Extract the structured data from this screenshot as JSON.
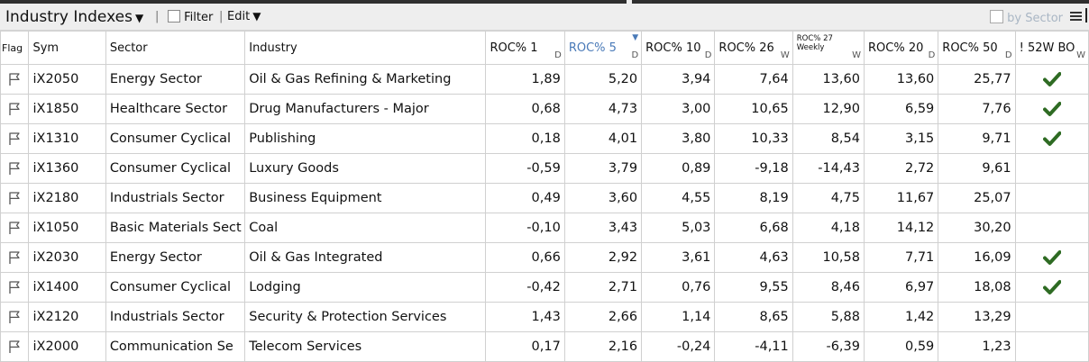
{
  "toolbar": {
    "title": "Industry Indexes",
    "separator": "|",
    "filter_label": "Filter",
    "edit_label": "Edit",
    "by_sector_label": "by Sector"
  },
  "columns": [
    {
      "label": "Flag",
      "unit": ""
    },
    {
      "label": "Sym",
      "unit": ""
    },
    {
      "label": "Sector",
      "unit": ""
    },
    {
      "label": "Industry",
      "unit": ""
    },
    {
      "label": "ROC% 1",
      "unit": "D"
    },
    {
      "label": "ROC% 5",
      "unit": "D"
    },
    {
      "label": "ROC% 10",
      "unit": "D"
    },
    {
      "label": "ROC% 26",
      "unit": "W"
    },
    {
      "label": "ROC% 27",
      "sublabel": "Weekly",
      "unit": "W"
    },
    {
      "label": "ROC% 20",
      "unit": "D"
    },
    {
      "label": "ROC% 50",
      "unit": "D"
    },
    {
      "label": "! 52W BO",
      "unit": "W"
    }
  ],
  "rows": [
    {
      "sym": "iX2050",
      "sector": "Energy Sector",
      "industry": "Oil & Gas Refining & Marketing",
      "roc1": "1,89",
      "roc5": "5,20",
      "roc10": "3,94",
      "roc26": "7,64",
      "roc27": "13,60",
      "roc20": "13,60",
      "roc50": "25,77",
      "bo": true
    },
    {
      "sym": "iX1850",
      "sector": "Healthcare Sector",
      "industry": "Drug Manufacturers - Major",
      "roc1": "0,68",
      "roc5": "4,73",
      "roc10": "3,00",
      "roc26": "10,65",
      "roc27": "12,90",
      "roc20": "6,59",
      "roc50": "7,76",
      "bo": true
    },
    {
      "sym": "iX1310",
      "sector": "Consumer Cyclical",
      "industry": "Publishing",
      "roc1": "0,18",
      "roc5": "4,01",
      "roc10": "3,80",
      "roc26": "10,33",
      "roc27": "8,54",
      "roc20": "3,15",
      "roc50": "9,71",
      "bo": true
    },
    {
      "sym": "iX1360",
      "sector": "Consumer Cyclical",
      "industry": "Luxury Goods",
      "roc1": "-0,59",
      "roc5": "3,79",
      "roc10": "0,89",
      "roc26": "-9,18",
      "roc27": "-14,43",
      "roc20": "2,72",
      "roc50": "9,61",
      "bo": false
    },
    {
      "sym": "iX2180",
      "sector": "Industrials Sector",
      "industry": "Business Equipment",
      "roc1": "0,49",
      "roc5": "3,60",
      "roc10": "4,55",
      "roc26": "8,19",
      "roc27": "4,75",
      "roc20": "11,67",
      "roc50": "25,07",
      "bo": false
    },
    {
      "sym": "iX1050",
      "sector": "Basic Materials Sect",
      "industry": "Coal",
      "roc1": "-0,10",
      "roc5": "3,43",
      "roc10": "5,03",
      "roc26": "6,68",
      "roc27": "4,18",
      "roc20": "14,12",
      "roc50": "30,20",
      "bo": false
    },
    {
      "sym": "iX2030",
      "sector": "Energy Sector",
      "industry": "Oil & Gas Integrated",
      "roc1": "0,66",
      "roc5": "2,92",
      "roc10": "3,61",
      "roc26": "4,63",
      "roc27": "10,58",
      "roc20": "7,71",
      "roc50": "16,09",
      "bo": true
    },
    {
      "sym": "iX1400",
      "sector": "Consumer Cyclical",
      "industry": "Lodging",
      "roc1": "-0,42",
      "roc5": "2,71",
      "roc10": "0,76",
      "roc26": "9,55",
      "roc27": "8,46",
      "roc20": "6,97",
      "roc50": "18,08",
      "bo": true
    },
    {
      "sym": "iX2120",
      "sector": "Industrials Sector",
      "industry": "Security & Protection Services",
      "roc1": "1,43",
      "roc5": "2,66",
      "roc10": "1,14",
      "roc26": "8,65",
      "roc27": "5,88",
      "roc20": "1,42",
      "roc50": "13,29",
      "bo": false
    },
    {
      "sym": "iX2000",
      "sector": "Communication Se",
      "industry": "Telecom Services",
      "roc1": "0,17",
      "roc5": "2,16",
      "roc10": "-0,24",
      "roc26": "-4,11",
      "roc27": "-6,39",
      "roc20": "0,59",
      "roc50": "1,23",
      "bo": false
    }
  ],
  "colors": {
    "sorted_header": "#4a7ab8",
    "check": "#2e6b23",
    "toolbar_bg": "#eeeeee"
  },
  "icons": {
    "title_dropdown": "caret-down-icon",
    "flag": "flag-icon",
    "breakout": "checkmark-icon",
    "menu": "hamburger-menu-icon",
    "sort": "sort-desc-icon"
  },
  "sorted_column": "ROC% 5"
}
